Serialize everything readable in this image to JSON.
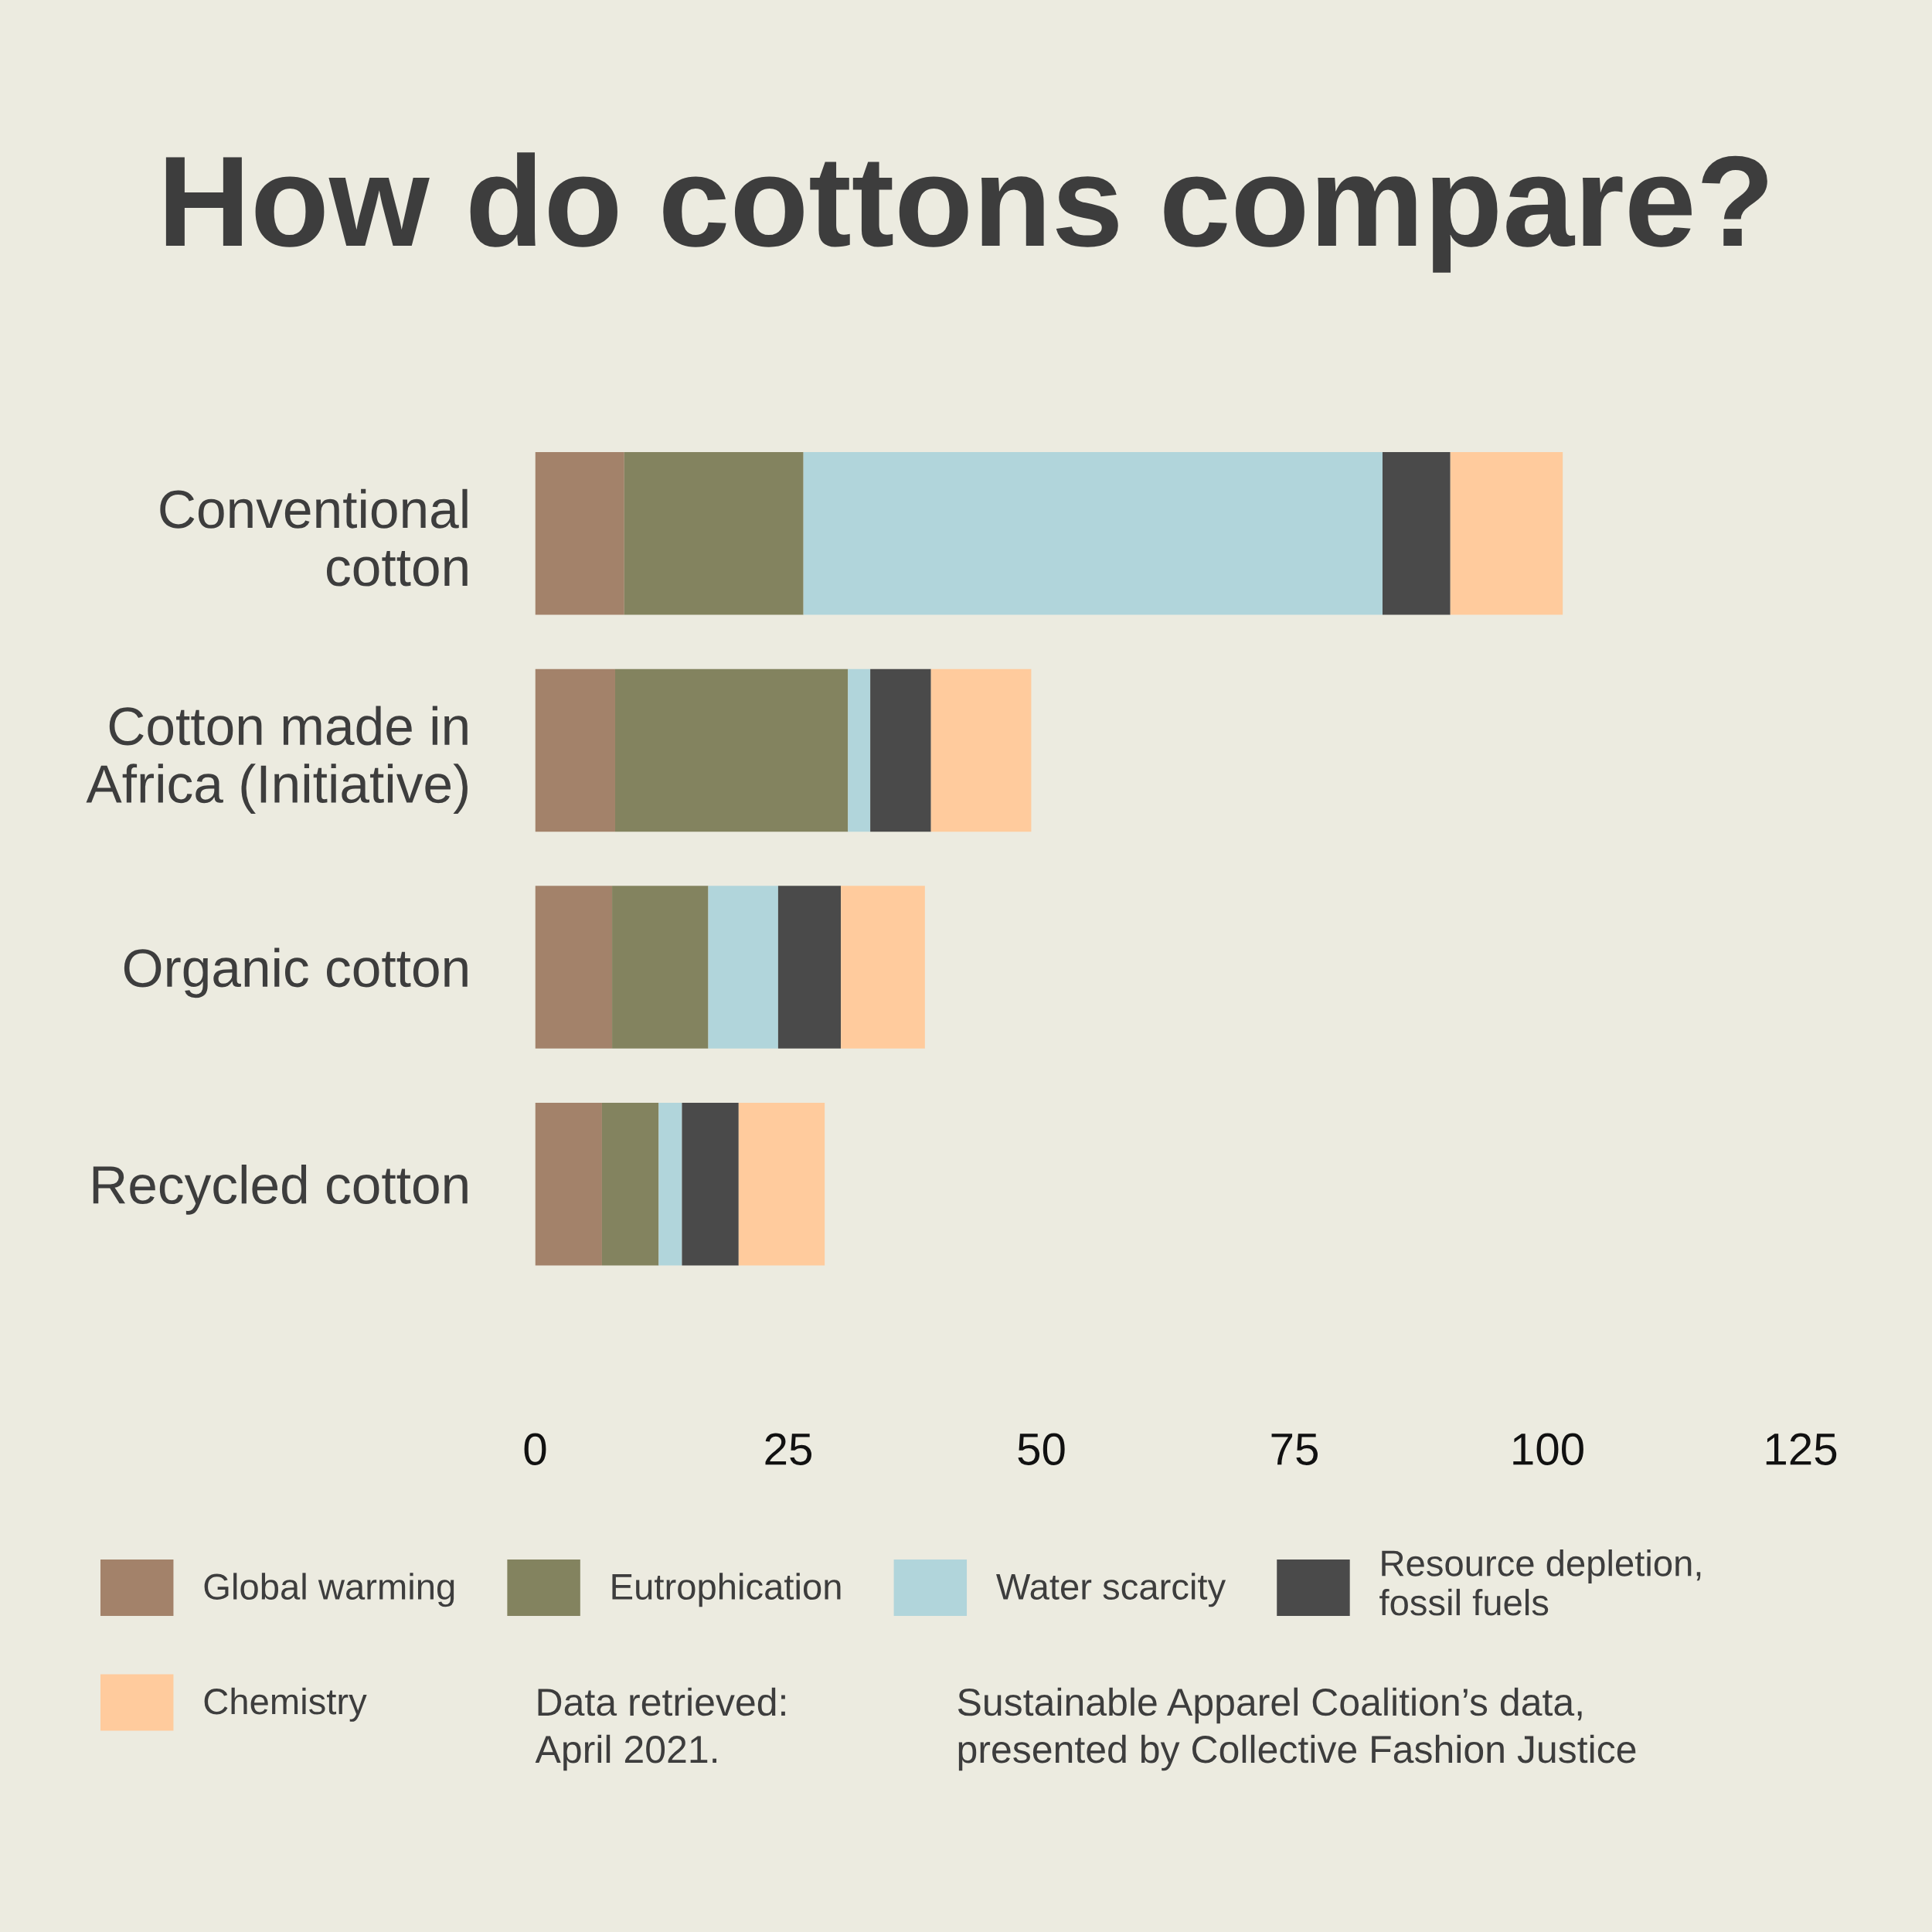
{
  "chart_data": {
    "type": "bar",
    "orientation": "horizontal",
    "stacked": true,
    "title": "How do cottons compare?",
    "categories": [
      "Conventional\ncotton",
      "Cotton made in\nAfrica (Initiative)",
      "Organic cotton",
      "Recycled cotton"
    ],
    "series": [
      {
        "name": "Global warming",
        "color": "#a3826a",
        "values": [
          8.8,
          7.9,
          7.6,
          6.6
        ]
      },
      {
        "name": "Eutrophication",
        "color": "#83835f",
        "values": [
          17.7,
          23.0,
          9.5,
          5.6
        ]
      },
      {
        "name": "Water scarcity",
        "color": "#b1d5db",
        "values": [
          57.2,
          2.2,
          6.9,
          2.3
        ]
      },
      {
        "name": "Resource depletion,\nfossil fuels",
        "color": "#4a4a4a",
        "values": [
          6.7,
          6.0,
          6.2,
          5.6
        ]
      },
      {
        "name": "Chemistry",
        "color": "#ffcb9d",
        "values": [
          11.1,
          9.9,
          8.3,
          8.5
        ]
      }
    ],
    "xlim": [
      0,
      125
    ],
    "xticks": [
      0,
      25,
      50,
      75,
      100,
      125
    ],
    "grid": false,
    "legend": "bottom",
    "annotations": [
      "Data retrieved:\nApril 2021.",
      "Sustainable Apparel Coalition’s data,\npresented by Collective Fashion Justice"
    ]
  }
}
